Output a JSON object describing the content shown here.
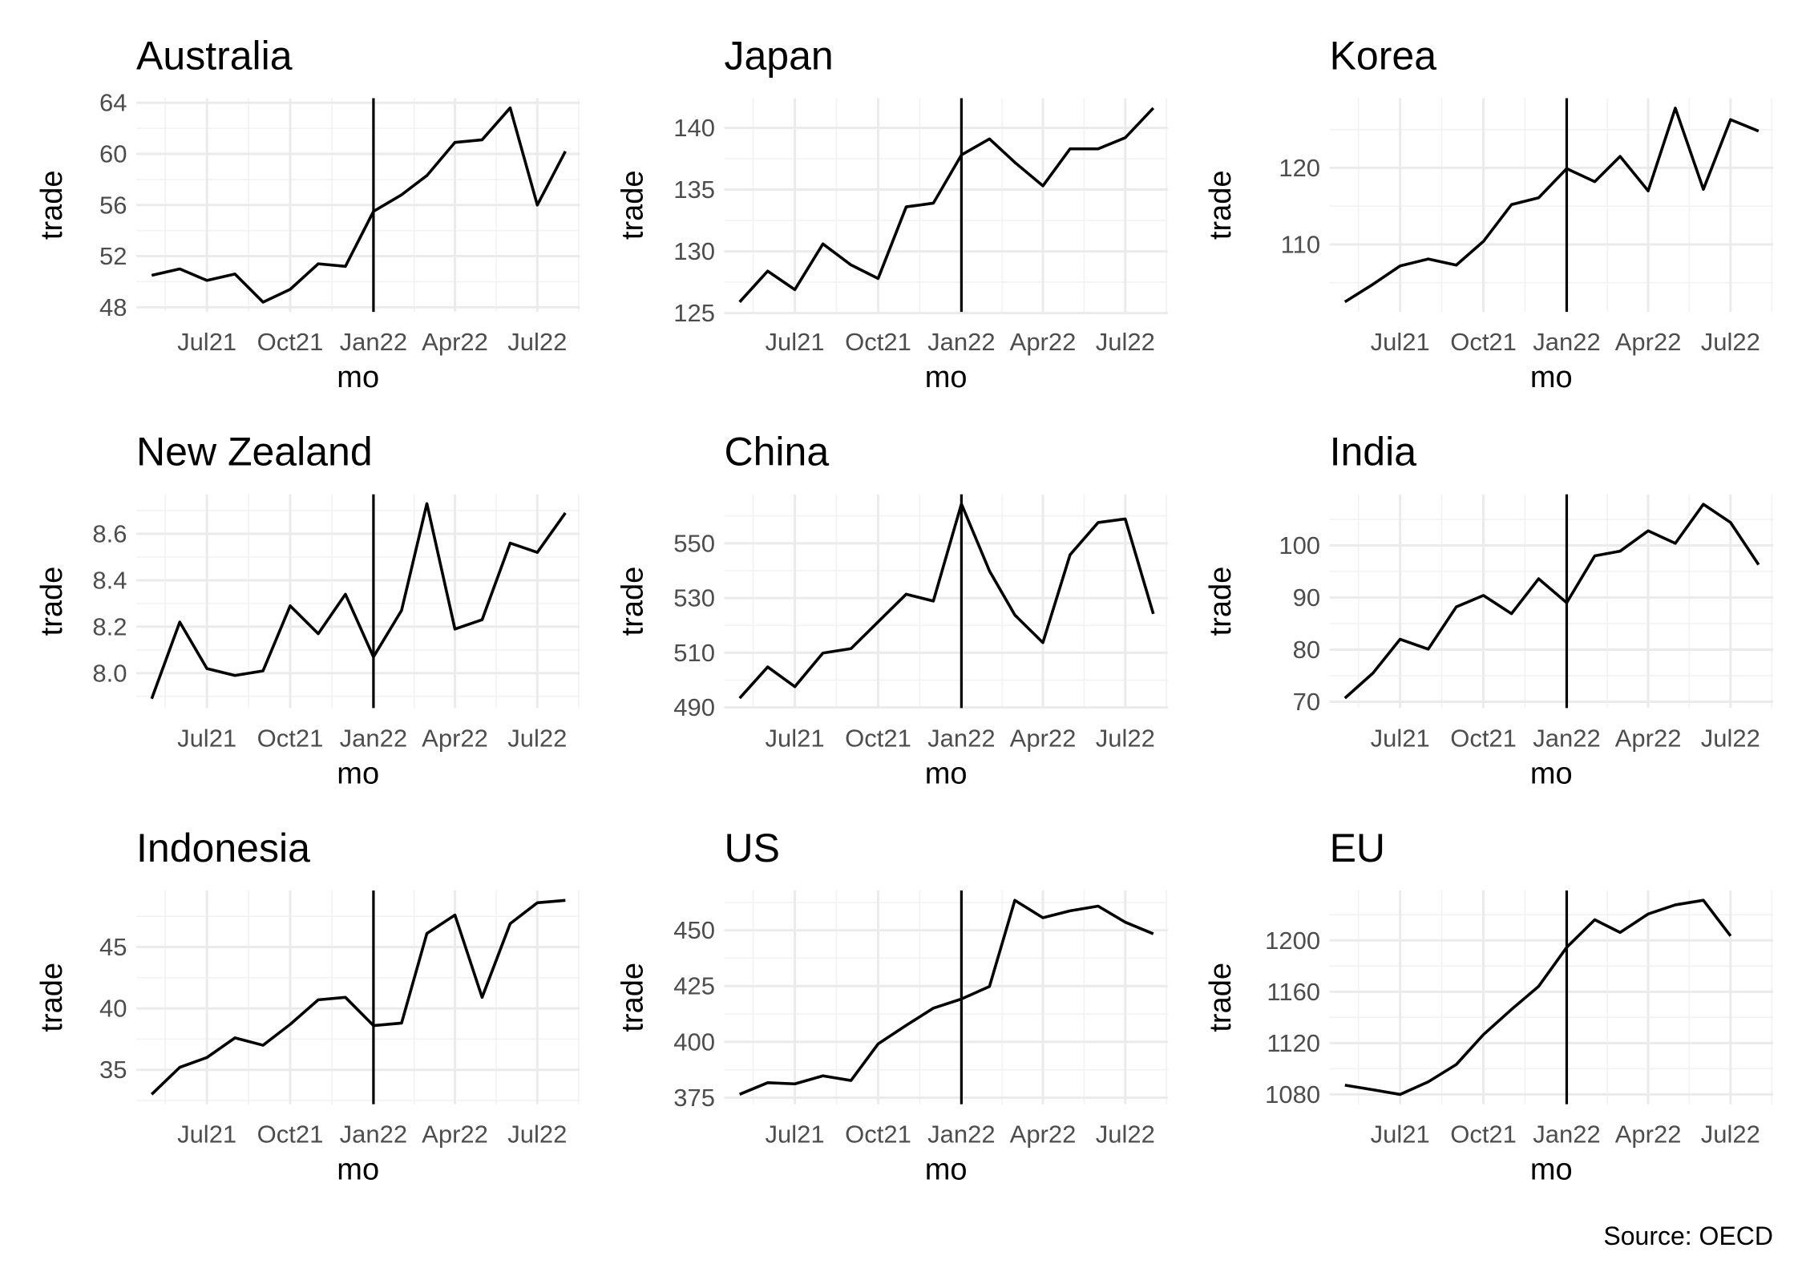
{
  "caption": "Source: OECD",
  "chart_data": [
    {
      "type": "line",
      "title": "Australia",
      "xlabel": "mo",
      "ylabel": "trade",
      "color": "#000000",
      "vline": "2022-01",
      "x": [
        "2021-05",
        "2021-06",
        "2021-07",
        "2021-08",
        "2021-09",
        "2021-10",
        "2021-11",
        "2021-12",
        "2022-01",
        "2022-02",
        "2022-03",
        "2022-04",
        "2022-05",
        "2022-06",
        "2022-07",
        "2022-08"
      ],
      "values": [
        50.5,
        51.0,
        50.1,
        50.6,
        48.4,
        49.4,
        51.4,
        51.2,
        55.5,
        56.8,
        58.3,
        60.9,
        61.1,
        63.6,
        56.0,
        60.2
      ],
      "xlim": [
        "2021-04-14",
        "2022-08-17"
      ],
      "xticks": [
        {
          "value": "2021-07",
          "label": "Jul21"
        },
        {
          "value": "2021-10",
          "label": "Oct21"
        },
        {
          "value": "2022-01",
          "label": "Jan22"
        },
        {
          "value": "2022-04",
          "label": "Apr22"
        },
        {
          "value": "2022-07",
          "label": "Jul22"
        }
      ],
      "ylim": [
        47.64,
        64.36
      ],
      "yticks": [
        48,
        52,
        56,
        60,
        64
      ],
      "grid": true
    },
    {
      "type": "line",
      "title": "Japan",
      "xlabel": "mo",
      "ylabel": "trade",
      "color": "#000000",
      "vline": "2022-01",
      "x": [
        "2021-05",
        "2021-06",
        "2021-07",
        "2021-08",
        "2021-09",
        "2021-10",
        "2021-11",
        "2021-12",
        "2022-01",
        "2022-02",
        "2022-03",
        "2022-04",
        "2022-05",
        "2022-06",
        "2022-07",
        "2022-08"
      ],
      "values": [
        125.9,
        128.4,
        126.9,
        130.6,
        128.9,
        127.8,
        133.6,
        133.9,
        137.8,
        139.1,
        137.2,
        135.3,
        138.3,
        138.3,
        139.2,
        141.6
      ],
      "xlim": [
        "2021-04-14",
        "2022-08-17"
      ],
      "xticks": [
        {
          "value": "2021-07",
          "label": "Jul21"
        },
        {
          "value": "2021-10",
          "label": "Oct21"
        },
        {
          "value": "2022-01",
          "label": "Jan22"
        },
        {
          "value": "2022-04",
          "label": "Apr22"
        },
        {
          "value": "2022-07",
          "label": "Jul22"
        }
      ],
      "ylim": [
        125.1,
        142.4
      ],
      "yticks": [
        125,
        130,
        135,
        140
      ],
      "grid": true
    },
    {
      "type": "line",
      "title": "Korea",
      "xlabel": "mo",
      "ylabel": "trade",
      "color": "#000000",
      "vline": "2022-01",
      "x": [
        "2021-05",
        "2021-06",
        "2021-07",
        "2021-08",
        "2021-09",
        "2021-10",
        "2021-11",
        "2021-12",
        "2022-01",
        "2022-02",
        "2022-03",
        "2022-04",
        "2022-05",
        "2022-06",
        "2022-07",
        "2022-08"
      ],
      "values": [
        102.5,
        104.8,
        107.2,
        108.1,
        107.3,
        110.4,
        115.2,
        116.1,
        119.9,
        118.2,
        121.5,
        117.0,
        127.8,
        117.2,
        126.3,
        124.8
      ],
      "xlim": [
        "2021-04-14",
        "2022-08-17"
      ],
      "xticks": [
        {
          "value": "2021-07",
          "label": "Jul21"
        },
        {
          "value": "2021-10",
          "label": "Oct21"
        },
        {
          "value": "2022-01",
          "label": "Jan22"
        },
        {
          "value": "2022-04",
          "label": "Apr22"
        },
        {
          "value": "2022-07",
          "label": "Jul22"
        }
      ],
      "ylim": [
        101.2,
        129.1
      ],
      "yticks": [
        110,
        120
      ],
      "grid": true
    },
    {
      "type": "line",
      "title": "New Zealand",
      "xlabel": "mo",
      "ylabel": "trade",
      "color": "#000000",
      "vline": "2022-01",
      "x": [
        "2021-05",
        "2021-06",
        "2021-07",
        "2021-08",
        "2021-09",
        "2021-10",
        "2021-11",
        "2021-12",
        "2022-01",
        "2022-02",
        "2022-03",
        "2022-04",
        "2022-05",
        "2022-06",
        "2022-07",
        "2022-08"
      ],
      "values": [
        7.89,
        8.22,
        8.02,
        7.99,
        8.01,
        8.29,
        8.17,
        8.34,
        8.07,
        8.27,
        8.73,
        8.19,
        8.23,
        8.56,
        8.52,
        8.69
      ],
      "xlim": [
        "2021-04-14",
        "2022-08-17"
      ],
      "xticks": [
        {
          "value": "2021-07",
          "label": "Jul21"
        },
        {
          "value": "2021-10",
          "label": "Oct21"
        },
        {
          "value": "2022-01",
          "label": "Jan22"
        },
        {
          "value": "2022-04",
          "label": "Apr22"
        },
        {
          "value": "2022-07",
          "label": "Jul22"
        }
      ],
      "ylim": [
        7.85,
        8.77
      ],
      "yticks": [
        {
          "value": 8,
          "label": "8.0"
        },
        8.2,
        8.4,
        8.6
      ],
      "grid": true
    },
    {
      "type": "line",
      "title": "China",
      "xlabel": "mo",
      "ylabel": "trade",
      "color": "#000000",
      "vline": "2022-01",
      "x": [
        "2021-05",
        "2021-06",
        "2021-07",
        "2021-08",
        "2021-09",
        "2021-10",
        "2021-11",
        "2021-12",
        "2022-01",
        "2022-02",
        "2022-03",
        "2022-04",
        "2022-05",
        "2022-06",
        "2022-07",
        "2022-08"
      ],
      "values": [
        493.4,
        504.8,
        497.6,
        509.9,
        511.5,
        521.3,
        531.4,
        528.9,
        564.4,
        539.9,
        523.8,
        513.7,
        545.8,
        557.6,
        558.9,
        524.2
      ],
      "xlim": [
        "2021-04-14",
        "2022-08-17"
      ],
      "xticks": [
        {
          "value": "2021-07",
          "label": "Jul21"
        },
        {
          "value": "2021-10",
          "label": "Oct21"
        },
        {
          "value": "2022-01",
          "label": "Jan22"
        },
        {
          "value": "2022-04",
          "label": "Apr22"
        },
        {
          "value": "2022-07",
          "label": "Jul22"
        }
      ],
      "ylim": [
        489.8,
        567.9
      ],
      "yticks": [
        490,
        510,
        530,
        550
      ],
      "grid": true
    },
    {
      "type": "line",
      "title": "India",
      "xlabel": "mo",
      "ylabel": "trade",
      "color": "#000000",
      "vline": "2022-01",
      "x": [
        "2021-05",
        "2021-06",
        "2021-07",
        "2021-08",
        "2021-09",
        "2021-10",
        "2021-11",
        "2021-12",
        "2022-01",
        "2022-02",
        "2022-03",
        "2022-04",
        "2022-05",
        "2022-06",
        "2022-07",
        "2022-08"
      ],
      "values": [
        70.7,
        75.5,
        82.0,
        80.1,
        88.2,
        90.4,
        86.9,
        93.6,
        89.0,
        98.0,
        98.9,
        102.8,
        100.4,
        107.9,
        104.4,
        96.3
      ],
      "xlim": [
        "2021-04-14",
        "2022-08-17"
      ],
      "xticks": [
        {
          "value": "2021-07",
          "label": "Jul21"
        },
        {
          "value": "2021-10",
          "label": "Oct21"
        },
        {
          "value": "2022-01",
          "label": "Jan22"
        },
        {
          "value": "2022-04",
          "label": "Apr22"
        },
        {
          "value": "2022-07",
          "label": "Jul22"
        }
      ],
      "ylim": [
        68.8,
        109.8
      ],
      "yticks": [
        70,
        80,
        90,
        100
      ],
      "grid": true
    },
    {
      "type": "line",
      "title": "Indonesia",
      "xlabel": "mo",
      "ylabel": "trade",
      "color": "#000000",
      "vline": "2022-01",
      "x": [
        "2021-05",
        "2021-06",
        "2021-07",
        "2021-08",
        "2021-09",
        "2021-10",
        "2021-11",
        "2021-12",
        "2022-01",
        "2022-02",
        "2022-03",
        "2022-04",
        "2022-05",
        "2022-06",
        "2022-07",
        "2022-08"
      ],
      "values": [
        33.0,
        35.2,
        36.0,
        37.6,
        37.0,
        38.7,
        40.7,
        40.9,
        38.6,
        38.8,
        46.1,
        47.6,
        40.9,
        46.9,
        48.6,
        48.8
      ],
      "xlim": [
        "2021-04-14",
        "2022-08-17"
      ],
      "xticks": [
        {
          "value": "2021-07",
          "label": "Jul21"
        },
        {
          "value": "2021-10",
          "label": "Oct21"
        },
        {
          "value": "2022-01",
          "label": "Jan22"
        },
        {
          "value": "2022-04",
          "label": "Apr22"
        },
        {
          "value": "2022-07",
          "label": "Jul22"
        }
      ],
      "ylim": [
        32.2,
        49.6
      ],
      "yticks": [
        35,
        40,
        45
      ],
      "grid": true
    },
    {
      "type": "line",
      "title": "US",
      "xlabel": "mo",
      "ylabel": "trade",
      "color": "#000000",
      "vline": "2022-01",
      "x": [
        "2021-05",
        "2021-06",
        "2021-07",
        "2021-08",
        "2021-09",
        "2021-10",
        "2021-11",
        "2021-12",
        "2022-01",
        "2022-02",
        "2022-03",
        "2022-04",
        "2022-05",
        "2022-06",
        "2022-07",
        "2022-08"
      ],
      "values": [
        376.5,
        381.7,
        381.2,
        384.8,
        382.7,
        399.1,
        407.4,
        415.1,
        419.2,
        424.8,
        463.4,
        455.6,
        458.7,
        460.8,
        453.6,
        448.4
      ],
      "xlim": [
        "2021-04-14",
        "2022-08-17"
      ],
      "xticks": [
        {
          "value": "2021-07",
          "label": "Jul21"
        },
        {
          "value": "2021-10",
          "label": "Oct21"
        },
        {
          "value": "2022-01",
          "label": "Jan22"
        },
        {
          "value": "2022-04",
          "label": "Apr22"
        },
        {
          "value": "2022-07",
          "label": "Jul22"
        }
      ],
      "ylim": [
        372.1,
        467.8
      ],
      "yticks": [
        375,
        400,
        425,
        450
      ],
      "grid": true
    },
    {
      "type": "line",
      "title": "EU",
      "xlabel": "mo",
      "ylabel": "trade",
      "color": "#000000",
      "vline": "2022-01",
      "x": [
        "2021-05",
        "2021-06",
        "2021-07",
        "2021-08",
        "2021-09",
        "2021-10",
        "2021-11",
        "2021-12",
        "2022-01",
        "2022-02",
        "2022-03",
        "2022-04",
        "2022-05",
        "2022-06",
        "2022-07",
        "2022-08"
      ],
      "values": [
        1087.2,
        1083.6,
        1080.0,
        1089.8,
        1103.3,
        1126.6,
        1146.2,
        1164.2,
        1194.6,
        1216.1,
        1206.2,
        1220.6,
        1227.7,
        1231.3,
        1203.5,
        null
      ],
      "xlim": [
        "2021-04-14",
        "2022-08-17"
      ],
      "xticks": [
        {
          "value": "2021-07",
          "label": "Jul21"
        },
        {
          "value": "2021-10",
          "label": "Oct21"
        },
        {
          "value": "2022-01",
          "label": "Jan22"
        },
        {
          "value": "2022-04",
          "label": "Apr22"
        },
        {
          "value": "2022-07",
          "label": "Jul22"
        }
      ],
      "ylim": [
        1072.4,
        1238.9
      ],
      "yticks": [
        1080,
        1120,
        1160,
        1200
      ],
      "grid": true
    }
  ]
}
